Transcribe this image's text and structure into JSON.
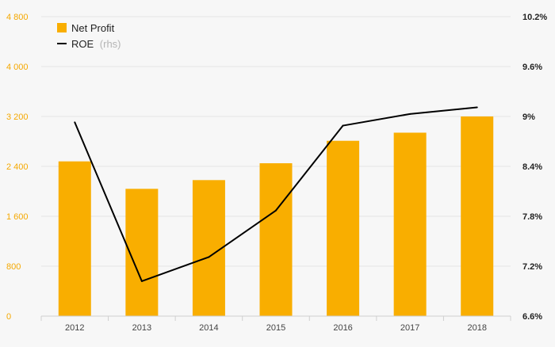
{
  "chart_data": {
    "type": "bar",
    "categories": [
      "2012",
      "2013",
      "2014",
      "2015",
      "2016",
      "2017",
      "2018"
    ],
    "series": [
      {
        "name": "Net Profit",
        "type": "bar",
        "axis": "left",
        "color": "#f9ae00",
        "values": [
          2480,
          2040,
          2180,
          2450,
          2810,
          2940,
          3200
        ]
      },
      {
        "name": "ROE",
        "name_suffix": "(rhs)",
        "type": "line",
        "axis": "right",
        "color": "#000000",
        "values": [
          8.93,
          7.02,
          7.31,
          7.87,
          8.89,
          9.03,
          9.11
        ]
      }
    ],
    "y_left": {
      "lim": [
        0,
        4800
      ],
      "ticks": [
        0,
        800,
        1600,
        2400,
        3200,
        4000,
        4800
      ],
      "tick_labels": [
        "0",
        "800",
        "1 600",
        "2 400",
        "3 200",
        "4 000",
        "4 800"
      ],
      "tick_color": "#f5a800"
    },
    "y_right": {
      "lim": [
        6.6,
        10.2
      ],
      "ticks": [
        6.6,
        7.2,
        7.8,
        8.4,
        9.0,
        9.6,
        10.2
      ],
      "tick_labels": [
        "6.6%",
        "7.2%",
        "7.8%",
        "8.4%",
        "9%",
        "9.6%",
        "10.2%"
      ]
    },
    "grid": true,
    "legend_position": "top-left"
  }
}
